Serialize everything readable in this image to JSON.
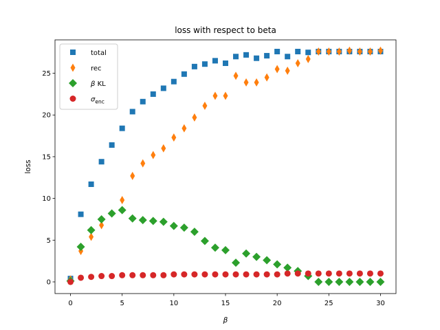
{
  "chart_data": {
    "type": "scatter",
    "title": "loss with respect to beta",
    "xlabel": "β",
    "ylabel": "loss",
    "xlim": [
      -1.5,
      31.5
    ],
    "ylim": [
      -1.4,
      29.0
    ],
    "x_ticks": [
      0,
      5,
      10,
      15,
      20,
      25,
      30
    ],
    "y_ticks": [
      0,
      5,
      10,
      15,
      20,
      25
    ],
    "grid": false,
    "legend_position": "top-left",
    "x": [
      0,
      1,
      2,
      3,
      4,
      5,
      6,
      7,
      8,
      9,
      10,
      11,
      12,
      13,
      14,
      15,
      16,
      17,
      18,
      19,
      20,
      21,
      22,
      23,
      24,
      25,
      26,
      27,
      28,
      29,
      30
    ],
    "series": [
      {
        "name": "total",
        "name_main": "total",
        "name_sub": "",
        "marker": "square",
        "color": "#1f77b4",
        "values": [
          0.4,
          8.1,
          11.7,
          14.4,
          16.4,
          18.4,
          20.4,
          21.6,
          22.5,
          23.2,
          24.0,
          24.9,
          25.8,
          26.1,
          26.5,
          26.2,
          27.0,
          27.2,
          26.8,
          27.1,
          27.6,
          27.0,
          27.6,
          27.5,
          27.6,
          27.6,
          27.6,
          27.6,
          27.6,
          27.6,
          27.6
        ]
      },
      {
        "name": "rec",
        "name_main": "rec",
        "name_sub": "",
        "marker": "thin-diamond",
        "color": "#ff7f0e",
        "values": [
          0.3,
          3.7,
          5.4,
          6.8,
          8.2,
          9.8,
          12.7,
          14.2,
          15.2,
          16.0,
          17.3,
          18.4,
          19.7,
          21.1,
          22.3,
          22.3,
          24.7,
          23.9,
          23.9,
          24.5,
          25.5,
          25.3,
          26.2,
          26.7,
          27.6,
          27.6,
          27.6,
          27.7,
          27.6,
          27.6,
          27.7
        ]
      },
      {
        "name": "β KL",
        "name_main": "β KL",
        "name_sub": "",
        "marker": "diamond",
        "color": "#2ca02c",
        "values": [
          0.1,
          4.2,
          6.2,
          7.5,
          8.2,
          8.6,
          7.6,
          7.4,
          7.3,
          7.2,
          6.7,
          6.5,
          6.0,
          4.9,
          4.1,
          3.8,
          2.3,
          3.4,
          3.0,
          2.6,
          2.1,
          1.7,
          1.3,
          0.7,
          0.0,
          0.0,
          0.0,
          0.0,
          0.0,
          0.0,
          0.0
        ]
      },
      {
        "name": "σenc",
        "name_main": "σ",
        "name_sub": "enc",
        "marker": "circle",
        "color": "#d62728",
        "values": [
          0.0,
          0.5,
          0.6,
          0.7,
          0.7,
          0.8,
          0.8,
          0.8,
          0.8,
          0.8,
          0.9,
          0.9,
          0.9,
          0.9,
          0.9,
          0.9,
          0.9,
          0.9,
          0.9,
          0.9,
          0.9,
          1.0,
          1.0,
          1.0,
          1.0,
          1.0,
          1.0,
          1.0,
          1.0,
          1.0,
          1.0
        ]
      }
    ]
  }
}
